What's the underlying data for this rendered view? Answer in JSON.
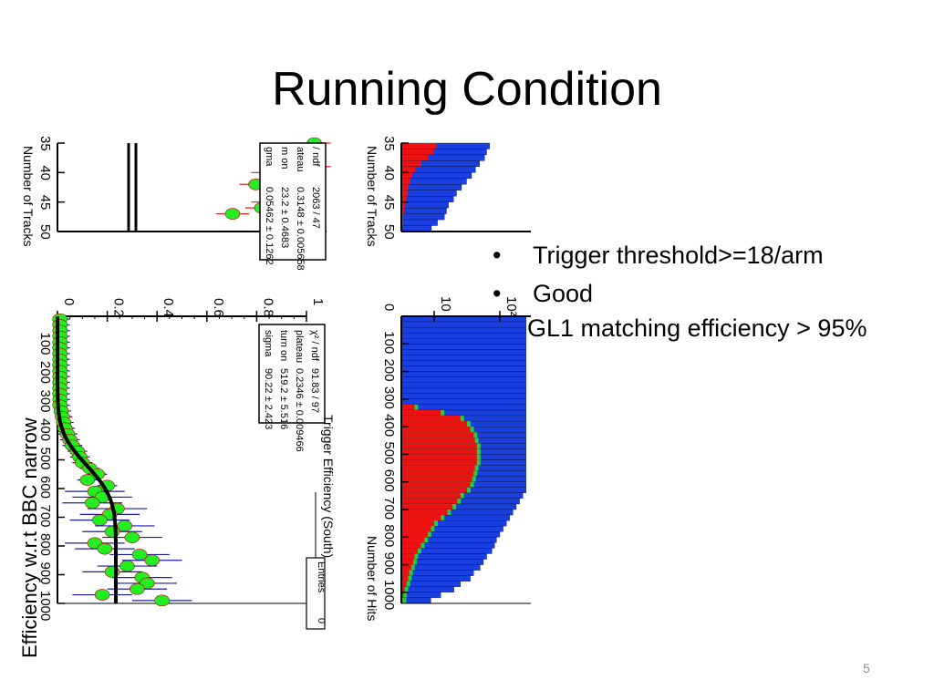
{
  "slide": {
    "title": "Running Condition",
    "bullets": [
      "Trigger threshold>=18/arm",
      "Good"
    ],
    "bullet_marker": "•",
    "bullet_note": "GL1 matching efficiency > 95%",
    "page_number": "5",
    "efficiency_ylabel": "Efficiency w.r.t BBC narrow"
  },
  "chart_data": [
    {
      "type": "scatter",
      "title": "",
      "xlabel": "Number of Tracks",
      "ylabel": "",
      "x_ticks": [
        "35",
        "40",
        "45",
        "50"
      ],
      "xlim": [
        35,
        50
      ],
      "stats_box": [
        [
          "/ ndf",
          "2063 / 47"
        ],
        [
          "ateau",
          "0.3148 ± 0.005658"
        ],
        [
          "m on",
          "23.2 ± 0.4683"
        ],
        [
          "gma",
          "0.05462 ± 0.1262"
        ]
      ],
      "series": [
        {
          "x": [
            35,
            36,
            37,
            38,
            39,
            40,
            41,
            42,
            43,
            44,
            45,
            46,
            47
          ],
          "y": [
            0.88,
            0.84,
            0.86,
            0.8,
            0.88,
            0.72,
            0.82,
            0.68,
            0.78,
            0.8,
            0.72,
            0.7,
            0.6
          ]
        }
      ],
      "colors": {
        "points": "#22ee22",
        "fit": "#000000",
        "errors": "#dd2222"
      }
    },
    {
      "type": "bar",
      "title": "",
      "xlabel": "Number of Tracks",
      "ylabel": "",
      "x_ticks": [
        "35",
        "40",
        "45",
        "50"
      ],
      "xlim": [
        35,
        50
      ],
      "colors": {
        "total": "#1a3fe0",
        "triggered": "#ee1111"
      },
      "x": [
        35,
        36,
        37,
        38,
        39,
        40,
        41,
        42,
        43,
        44,
        45,
        46,
        47,
        48,
        49
      ],
      "total": [
        0.88,
        0.85,
        0.83,
        0.78,
        0.74,
        0.7,
        0.65,
        0.6,
        0.55,
        0.52,
        0.47,
        0.45,
        0.43,
        0.36,
        0.3
      ],
      "triggered": [
        0.35,
        0.32,
        0.27,
        0.2,
        0.14,
        0.11,
        0.09,
        0.07,
        0.06,
        0.05,
        0.04,
        0.03,
        0.02,
        0.02,
        0.01
      ]
    },
    {
      "type": "scatter",
      "title": "Trigger Efficiency (South)",
      "xlabel": "",
      "ylabel": "Efficiency w.r.t BBC narrow",
      "x_ticks": [
        "100",
        "200",
        "300",
        "400",
        "500",
        "600",
        "700",
        "800",
        "900",
        "1000"
      ],
      "y_ticks": [
        "0",
        "0.2",
        "0.4",
        "0.6",
        "0.8",
        "1"
      ],
      "xlim": [
        0,
        1000
      ],
      "ylim": [
        0,
        1.0
      ],
      "stats_box": [
        [
          "χ² / ndf",
          "91.83 / 97"
        ],
        [
          "plateau",
          "0.2346 ± 0.009466"
        ],
        [
          "turn on",
          "519.2 ± 5.516"
        ],
        [
          "sigma",
          "90.22 ± 2.423"
        ]
      ],
      "entries_label": "Entries",
      "entries_value": "0",
      "fit": {
        "plateau": 0.2346,
        "turn_on": 519.2,
        "sigma": 90.22
      },
      "series": [
        {
          "name": "",
          "x": [
            10,
            30,
            50,
            70,
            90,
            110,
            130,
            150,
            170,
            190,
            210,
            230,
            250,
            270,
            290,
            310,
            330,
            350,
            370,
            390,
            410,
            430,
            450,
            470,
            490,
            510,
            530,
            550,
            570,
            590,
            610,
            630,
            650,
            670,
            690,
            710,
            730,
            750,
            770,
            790,
            810,
            830,
            850,
            870,
            890,
            910,
            930,
            950,
            970,
            990
          ],
          "y": [
            0.01,
            0.01,
            0.01,
            0.01,
            0.01,
            0.01,
            0.01,
            0.01,
            0.01,
            0.01,
            0.01,
            0.01,
            0.01,
            0.01,
            0.01,
            0.01,
            0.015,
            0.02,
            0.025,
            0.03,
            0.04,
            0.05,
            0.06,
            0.08,
            0.09,
            0.1,
            0.13,
            0.16,
            0.12,
            0.2,
            0.15,
            0.18,
            0.14,
            0.24,
            0.21,
            0.17,
            0.27,
            0.22,
            0.3,
            0.15,
            0.19,
            0.33,
            0.38,
            0.28,
            0.22,
            0.34,
            0.36,
            0.32,
            0.18,
            0.42
          ]
        }
      ],
      "colors": {
        "points": "#22ee22",
        "fit": "#000000",
        "errors": "#1a1ab0"
      }
    },
    {
      "type": "bar",
      "title": "",
      "xlabel": "Number of Hits",
      "ylabel": "",
      "log_y": true,
      "x_ticks": [
        "0",
        "100",
        "200",
        "300",
        "400",
        "500",
        "600",
        "700",
        "800",
        "900",
        "1000"
      ],
      "y_ticks": [
        "10",
        "10²"
      ],
      "xlim": [
        0,
        1040
      ],
      "colors": {
        "total": "#1a3fe0",
        "triggered": "#ee1111",
        "other": "#22cc44"
      },
      "x": [
        0,
        20,
        40,
        60,
        80,
        100,
        120,
        140,
        160,
        180,
        200,
        220,
        240,
        260,
        280,
        300,
        320,
        340,
        360,
        380,
        400,
        420,
        440,
        460,
        480,
        500,
        520,
        540,
        560,
        580,
        600,
        620,
        640,
        660,
        680,
        700,
        720,
        740,
        760,
        780,
        800,
        820,
        840,
        860,
        880,
        900,
        920,
        940,
        960,
        980,
        1000,
        1020
      ],
      "total": [
        1.9,
        1.9,
        1.9,
        1.9,
        1.9,
        1.9,
        1.9,
        1.9,
        1.9,
        1.9,
        1.9,
        1.9,
        1.9,
        1.9,
        1.9,
        1.9,
        1.9,
        1.9,
        1.9,
        1.9,
        1.9,
        1.9,
        1.9,
        1.9,
        1.9,
        1.9,
        1.9,
        1.9,
        1.9,
        1.9,
        1.9,
        1.9,
        1.85,
        1.8,
        1.75,
        1.7,
        1.65,
        1.6,
        1.55,
        1.5,
        1.45,
        1.42,
        1.38,
        1.3,
        1.25,
        1.2,
        1.1,
        1.05,
        0.9,
        0.8,
        0.6,
        0.45
      ],
      "triggered": [
        0,
        0,
        0,
        0,
        0,
        0,
        0,
        0,
        0,
        0,
        0,
        0,
        0,
        0,
        0,
        0,
        0.2,
        0.6,
        0.9,
        1.0,
        1.05,
        1.1,
        1.12,
        1.15,
        1.15,
        1.15,
        1.15,
        1.12,
        1.1,
        1.08,
        1.05,
        1.0,
        0.9,
        0.85,
        0.78,
        0.7,
        0.6,
        0.5,
        0.45,
        0.4,
        0.35,
        0.3,
        0.25,
        0.2,
        0.18,
        0.15,
        0.12,
        0.1,
        0.08,
        0.05,
        0.03,
        0.02
      ]
    }
  ]
}
